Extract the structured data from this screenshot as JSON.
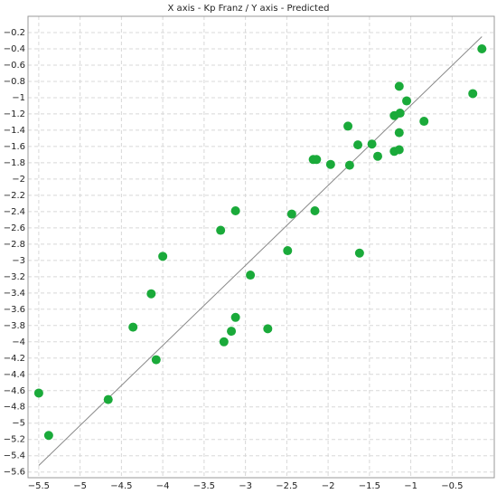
{
  "chart_data": {
    "type": "scatter",
    "title": "X axis - Kp Franz / Y axis - Predicted",
    "color": "#1aaa3a",
    "grid": true,
    "xlim": [
      -5.63,
      0.01
    ],
    "ylim": [
      -5.67,
      0.0
    ],
    "xticks": [
      {
        "value": -5.5,
        "label": "−5.5"
      },
      {
        "value": -5,
        "label": "−5"
      },
      {
        "value": -4.5,
        "label": "−4.5"
      },
      {
        "value": -4,
        "label": "−4"
      },
      {
        "value": -3.5,
        "label": "−3.5"
      },
      {
        "value": -3,
        "label": "−3"
      },
      {
        "value": -2.5,
        "label": "−2.5"
      },
      {
        "value": -2,
        "label": "−2"
      },
      {
        "value": -1.5,
        "label": "−1.5"
      },
      {
        "value": -1,
        "label": "−1"
      },
      {
        "value": -0.5,
        "label": "−0.5"
      }
    ],
    "yticks": [
      {
        "value": -0.2,
        "label": "−0.2"
      },
      {
        "value": -0.4,
        "label": "−0.4"
      },
      {
        "value": -0.6,
        "label": "−0.6"
      },
      {
        "value": -0.8,
        "label": "−0.8"
      },
      {
        "value": -1,
        "label": "−1"
      },
      {
        "value": -1.2,
        "label": "−1.2"
      },
      {
        "value": -1.4,
        "label": "−1.4"
      },
      {
        "value": -1.6,
        "label": "−1.6"
      },
      {
        "value": -1.8,
        "label": "−1.8"
      },
      {
        "value": -2,
        "label": "−2"
      },
      {
        "value": -2.2,
        "label": "−2.2"
      },
      {
        "value": -2.4,
        "label": "−2.4"
      },
      {
        "value": -2.6,
        "label": "−2.6"
      },
      {
        "value": -2.8,
        "label": "−2.8"
      },
      {
        "value": -3,
        "label": "−3"
      },
      {
        "value": -3.2,
        "label": "−3.2"
      },
      {
        "value": -3.4,
        "label": "−3.4"
      },
      {
        "value": -3.6,
        "label": "−3.6"
      },
      {
        "value": -3.8,
        "label": "−3.8"
      },
      {
        "value": -4,
        "label": "−4"
      },
      {
        "value": -4.2,
        "label": "−4.2"
      },
      {
        "value": -4.4,
        "label": "−4.4"
      },
      {
        "value": -4.6,
        "label": "−4.6"
      },
      {
        "value": -4.8,
        "label": "−4.8"
      },
      {
        "value": -5,
        "label": "−5"
      },
      {
        "value": -5.2,
        "label": "−5.2"
      },
      {
        "value": -5.4,
        "label": "−5.4"
      },
      {
        "value": -5.6,
        "label": "−5.6"
      }
    ],
    "x": [
      -5.5,
      -5.38,
      -4.66,
      -4.36,
      -4.14,
      -4.08,
      -4.0,
      -3.3,
      -3.12,
      -3.12,
      -3.17,
      -3.26,
      -2.73,
      -2.94,
      -2.49,
      -2.44,
      -2.16,
      -2.18,
      -2.14,
      -1.97,
      -1.74,
      -1.76,
      -1.64,
      -1.62,
      -1.47,
      -1.4,
      -1.2,
      -1.2,
      -1.14,
      -1.14,
      -1.14,
      -1.13,
      -1.05,
      -0.84,
      -0.25,
      -0.14
    ],
    "values": [
      -4.63,
      -5.15,
      -4.71,
      -3.82,
      -3.41,
      -4.22,
      -2.95,
      -2.63,
      -2.39,
      -3.7,
      -3.87,
      -4.0,
      -3.84,
      -3.18,
      -2.88,
      -2.43,
      -2.39,
      -1.76,
      -1.76,
      -1.82,
      -1.83,
      -1.35,
      -1.58,
      -2.91,
      -1.57,
      -1.72,
      -1.22,
      -1.66,
      -1.64,
      -1.43,
      -0.86,
      -1.19,
      -1.04,
      -1.29,
      -0.95,
      -0.4
    ],
    "reference_line": {
      "x": [
        -5.5,
        -0.14
      ],
      "y": [
        -5.52,
        -0.25
      ],
      "color": "#888888"
    }
  }
}
